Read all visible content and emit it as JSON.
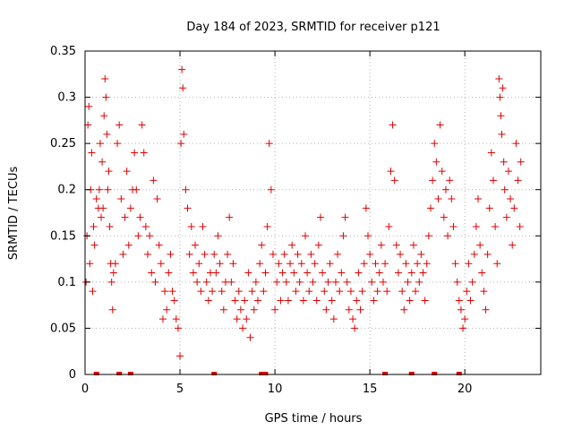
{
  "chart_data": {
    "type": "scatter",
    "title": "Day 184 of 2023, SRMTID for receiver p121",
    "xlabel": "GPS time / hours",
    "ylabel": "SRMTID / TECUs",
    "xlim": [
      0,
      24
    ],
    "ylim": [
      0,
      0.35
    ],
    "x_ticks": [
      0,
      5,
      10,
      15,
      20
    ],
    "x_tick_labels": [
      "0",
      "5",
      "10",
      "15",
      "20"
    ],
    "y_ticks": [
      0,
      0.05,
      0.1,
      0.15,
      0.2,
      0.25,
      0.3,
      0.35
    ],
    "y_tick_labels": [
      "0",
      "0.05",
      "0.1",
      "0.15",
      "0.2",
      "0.25",
      "0.3",
      "0.35"
    ],
    "grid": true,
    "marker": "+",
    "marker_color": "#e00000",
    "zero_markers_x": [
      0.6,
      1.8,
      2.4,
      6.8,
      9.3,
      9.5,
      15.8,
      17.2,
      18.4,
      19.7
    ],
    "series": [
      {
        "name": "SRMTID",
        "points": [
          [
            0.05,
            0.1
          ],
          [
            0.1,
            0.15
          ],
          [
            0.15,
            0.27
          ],
          [
            0.2,
            0.29
          ],
          [
            0.25,
            0.12
          ],
          [
            0.3,
            0.2
          ],
          [
            0.35,
            0.24
          ],
          [
            0.4,
            0.09
          ],
          [
            0.45,
            0.16
          ],
          [
            0.5,
            0.14
          ],
          [
            0.6,
            0.19
          ],
          [
            0.7,
            0.18
          ],
          [
            0.75,
            0.2
          ],
          [
            0.8,
            0.25
          ],
          [
            0.85,
            0.17
          ],
          [
            0.9,
            0.23
          ],
          [
            0.95,
            0.18
          ],
          [
            1.0,
            0.28
          ],
          [
            1.05,
            0.32
          ],
          [
            1.1,
            0.3
          ],
          [
            1.15,
            0.26
          ],
          [
            1.2,
            0.2
          ],
          [
            1.25,
            0.22
          ],
          [
            1.3,
            0.16
          ],
          [
            1.35,
            0.12
          ],
          [
            1.4,
            0.1
          ],
          [
            1.45,
            0.07
          ],
          [
            1.5,
            0.11
          ],
          [
            1.6,
            0.12
          ],
          [
            1.7,
            0.25
          ],
          [
            1.8,
            0.27
          ],
          [
            1.9,
            0.19
          ],
          [
            2.0,
            0.13
          ],
          [
            2.1,
            0.17
          ],
          [
            2.2,
            0.22
          ],
          [
            2.3,
            0.14
          ],
          [
            2.4,
            0.18
          ],
          [
            2.5,
            0.2
          ],
          [
            2.6,
            0.24
          ],
          [
            2.7,
            0.2
          ],
          [
            2.8,
            0.15
          ],
          [
            2.9,
            0.17
          ],
          [
            3.0,
            0.27
          ],
          [
            3.1,
            0.24
          ],
          [
            3.2,
            0.16
          ],
          [
            3.3,
            0.13
          ],
          [
            3.4,
            0.15
          ],
          [
            3.5,
            0.11
          ],
          [
            3.6,
            0.21
          ],
          [
            3.7,
            0.1
          ],
          [
            3.8,
            0.19
          ],
          [
            3.9,
            0.14
          ],
          [
            4.0,
            0.12
          ],
          [
            4.1,
            0.06
          ],
          [
            4.2,
            0.09
          ],
          [
            4.3,
            0.07
          ],
          [
            4.4,
            0.11
          ],
          [
            4.5,
            0.13
          ],
          [
            4.6,
            0.09
          ],
          [
            4.7,
            0.08
          ],
          [
            4.8,
            0.06
          ],
          [
            4.9,
            0.05
          ],
          [
            5.0,
            0.02
          ],
          [
            5.05,
            0.25
          ],
          [
            5.1,
            0.33
          ],
          [
            5.15,
            0.31
          ],
          [
            5.2,
            0.26
          ],
          [
            5.3,
            0.2
          ],
          [
            5.4,
            0.18
          ],
          [
            5.5,
            0.13
          ],
          [
            5.6,
            0.16
          ],
          [
            5.7,
            0.11
          ],
          [
            5.8,
            0.14
          ],
          [
            5.9,
            0.1
          ],
          [
            6.0,
            0.12
          ],
          [
            6.1,
            0.09
          ],
          [
            6.2,
            0.16
          ],
          [
            6.3,
            0.13
          ],
          [
            6.4,
            0.1
          ],
          [
            6.5,
            0.08
          ],
          [
            6.6,
            0.11
          ],
          [
            6.7,
            0.09
          ],
          [
            6.8,
            0.13
          ],
          [
            6.9,
            0.11
          ],
          [
            7.0,
            0.15
          ],
          [
            7.1,
            0.12
          ],
          [
            7.2,
            0.09
          ],
          [
            7.3,
            0.07
          ],
          [
            7.4,
            0.1
          ],
          [
            7.5,
            0.13
          ],
          [
            7.6,
            0.17
          ],
          [
            7.7,
            0.1
          ],
          [
            7.8,
            0.12
          ],
          [
            7.9,
            0.08
          ],
          [
            8.0,
            0.06
          ],
          [
            8.1,
            0.09
          ],
          [
            8.2,
            0.07
          ],
          [
            8.3,
            0.05
          ],
          [
            8.4,
            0.08
          ],
          [
            8.5,
            0.06
          ],
          [
            8.6,
            0.11
          ],
          [
            8.7,
            0.04
          ],
          [
            8.8,
            0.09
          ],
          [
            8.9,
            0.07
          ],
          [
            9.0,
            0.1
          ],
          [
            9.1,
            0.08
          ],
          [
            9.2,
            0.12
          ],
          [
            9.3,
            0.14
          ],
          [
            9.4,
            0.09
          ],
          [
            9.5,
            0.11
          ],
          [
            9.6,
            0.16
          ],
          [
            9.7,
            0.25
          ],
          [
            9.8,
            0.2
          ],
          [
            9.9,
            0.13
          ],
          [
            10.0,
            0.07
          ],
          [
            10.1,
            0.1
          ],
          [
            10.2,
            0.12
          ],
          [
            10.3,
            0.08
          ],
          [
            10.4,
            0.11
          ],
          [
            10.5,
            0.13
          ],
          [
            10.6,
            0.1
          ],
          [
            10.7,
            0.08
          ],
          [
            10.8,
            0.12
          ],
          [
            10.9,
            0.14
          ],
          [
            11.0,
            0.11
          ],
          [
            11.1,
            0.09
          ],
          [
            11.2,
            0.13
          ],
          [
            11.3,
            0.1
          ],
          [
            11.4,
            0.12
          ],
          [
            11.5,
            0.08
          ],
          [
            11.6,
            0.15
          ],
          [
            11.7,
            0.11
          ],
          [
            11.8,
            0.09
          ],
          [
            11.9,
            0.13
          ],
          [
            12.0,
            0.1
          ],
          [
            12.1,
            0.12
          ],
          [
            12.2,
            0.08
          ],
          [
            12.3,
            0.14
          ],
          [
            12.4,
            0.17
          ],
          [
            12.5,
            0.11
          ],
          [
            12.6,
            0.09
          ],
          [
            12.7,
            0.07
          ],
          [
            12.8,
            0.1
          ],
          [
            12.9,
            0.12
          ],
          [
            13.0,
            0.08
          ],
          [
            13.1,
            0.06
          ],
          [
            13.2,
            0.1
          ],
          [
            13.3,
            0.13
          ],
          [
            13.4,
            0.09
          ],
          [
            13.5,
            0.11
          ],
          [
            13.6,
            0.15
          ],
          [
            13.7,
            0.17
          ],
          [
            13.8,
            0.1
          ],
          [
            13.9,
            0.07
          ],
          [
            14.0,
            0.09
          ],
          [
            14.1,
            0.06
          ],
          [
            14.2,
            0.05
          ],
          [
            14.3,
            0.08
          ],
          [
            14.4,
            0.11
          ],
          [
            14.5,
            0.07
          ],
          [
            14.6,
            0.09
          ],
          [
            14.7,
            0.12
          ],
          [
            14.8,
            0.18
          ],
          [
            14.9,
            0.15
          ],
          [
            15.0,
            0.13
          ],
          [
            15.1,
            0.1
          ],
          [
            15.2,
            0.08
          ],
          [
            15.3,
            0.12
          ],
          [
            15.4,
            0.09
          ],
          [
            15.5,
            0.11
          ],
          [
            15.6,
            0.14
          ],
          [
            15.7,
            0.1
          ],
          [
            15.8,
            0.12
          ],
          [
            15.9,
            0.09
          ],
          [
            16.0,
            0.16
          ],
          [
            16.1,
            0.22
          ],
          [
            16.2,
            0.27
          ],
          [
            16.3,
            0.21
          ],
          [
            16.4,
            0.14
          ],
          [
            16.5,
            0.11
          ],
          [
            16.6,
            0.13
          ],
          [
            16.7,
            0.09
          ],
          [
            16.8,
            0.07
          ],
          [
            16.9,
            0.12
          ],
          [
            17.0,
            0.1
          ],
          [
            17.1,
            0.08
          ],
          [
            17.2,
            0.11
          ],
          [
            17.3,
            0.14
          ],
          [
            17.4,
            0.09
          ],
          [
            17.5,
            0.12
          ],
          [
            17.6,
            0.1
          ],
          [
            17.7,
            0.13
          ],
          [
            17.8,
            0.11
          ],
          [
            17.9,
            0.08
          ],
          [
            18.0,
            0.12
          ],
          [
            18.1,
            0.15
          ],
          [
            18.2,
            0.18
          ],
          [
            18.3,
            0.21
          ],
          [
            18.4,
            0.25
          ],
          [
            18.5,
            0.23
          ],
          [
            18.6,
            0.19
          ],
          [
            18.7,
            0.27
          ],
          [
            18.8,
            0.22
          ],
          [
            18.9,
            0.17
          ],
          [
            19.0,
            0.2
          ],
          [
            19.1,
            0.15
          ],
          [
            19.2,
            0.21
          ],
          [
            19.3,
            0.19
          ],
          [
            19.4,
            0.16
          ],
          [
            19.5,
            0.12
          ],
          [
            19.6,
            0.1
          ],
          [
            19.7,
            0.08
          ],
          [
            19.8,
            0.07
          ],
          [
            19.9,
            0.05
          ],
          [
            20.0,
            0.06
          ],
          [
            20.1,
            0.09
          ],
          [
            20.2,
            0.12
          ],
          [
            20.3,
            0.08
          ],
          [
            20.4,
            0.1
          ],
          [
            20.5,
            0.13
          ],
          [
            20.6,
            0.16
          ],
          [
            20.7,
            0.19
          ],
          [
            20.8,
            0.14
          ],
          [
            20.9,
            0.11
          ],
          [
            21.0,
            0.09
          ],
          [
            21.1,
            0.07
          ],
          [
            21.2,
            0.13
          ],
          [
            21.3,
            0.18
          ],
          [
            21.4,
            0.24
          ],
          [
            21.5,
            0.21
          ],
          [
            21.6,
            0.16
          ],
          [
            21.7,
            0.12
          ],
          [
            21.8,
            0.32
          ],
          [
            21.85,
            0.3
          ],
          [
            21.9,
            0.28
          ],
          [
            21.95,
            0.26
          ],
          [
            22.0,
            0.31
          ],
          [
            22.05,
            0.23
          ],
          [
            22.1,
            0.2
          ],
          [
            22.2,
            0.17
          ],
          [
            22.3,
            0.22
          ],
          [
            22.4,
            0.19
          ],
          [
            22.5,
            0.14
          ],
          [
            22.6,
            0.18
          ],
          [
            22.7,
            0.25
          ],
          [
            22.8,
            0.21
          ],
          [
            22.9,
            0.16
          ],
          [
            22.95,
            0.23
          ]
        ]
      }
    ]
  }
}
